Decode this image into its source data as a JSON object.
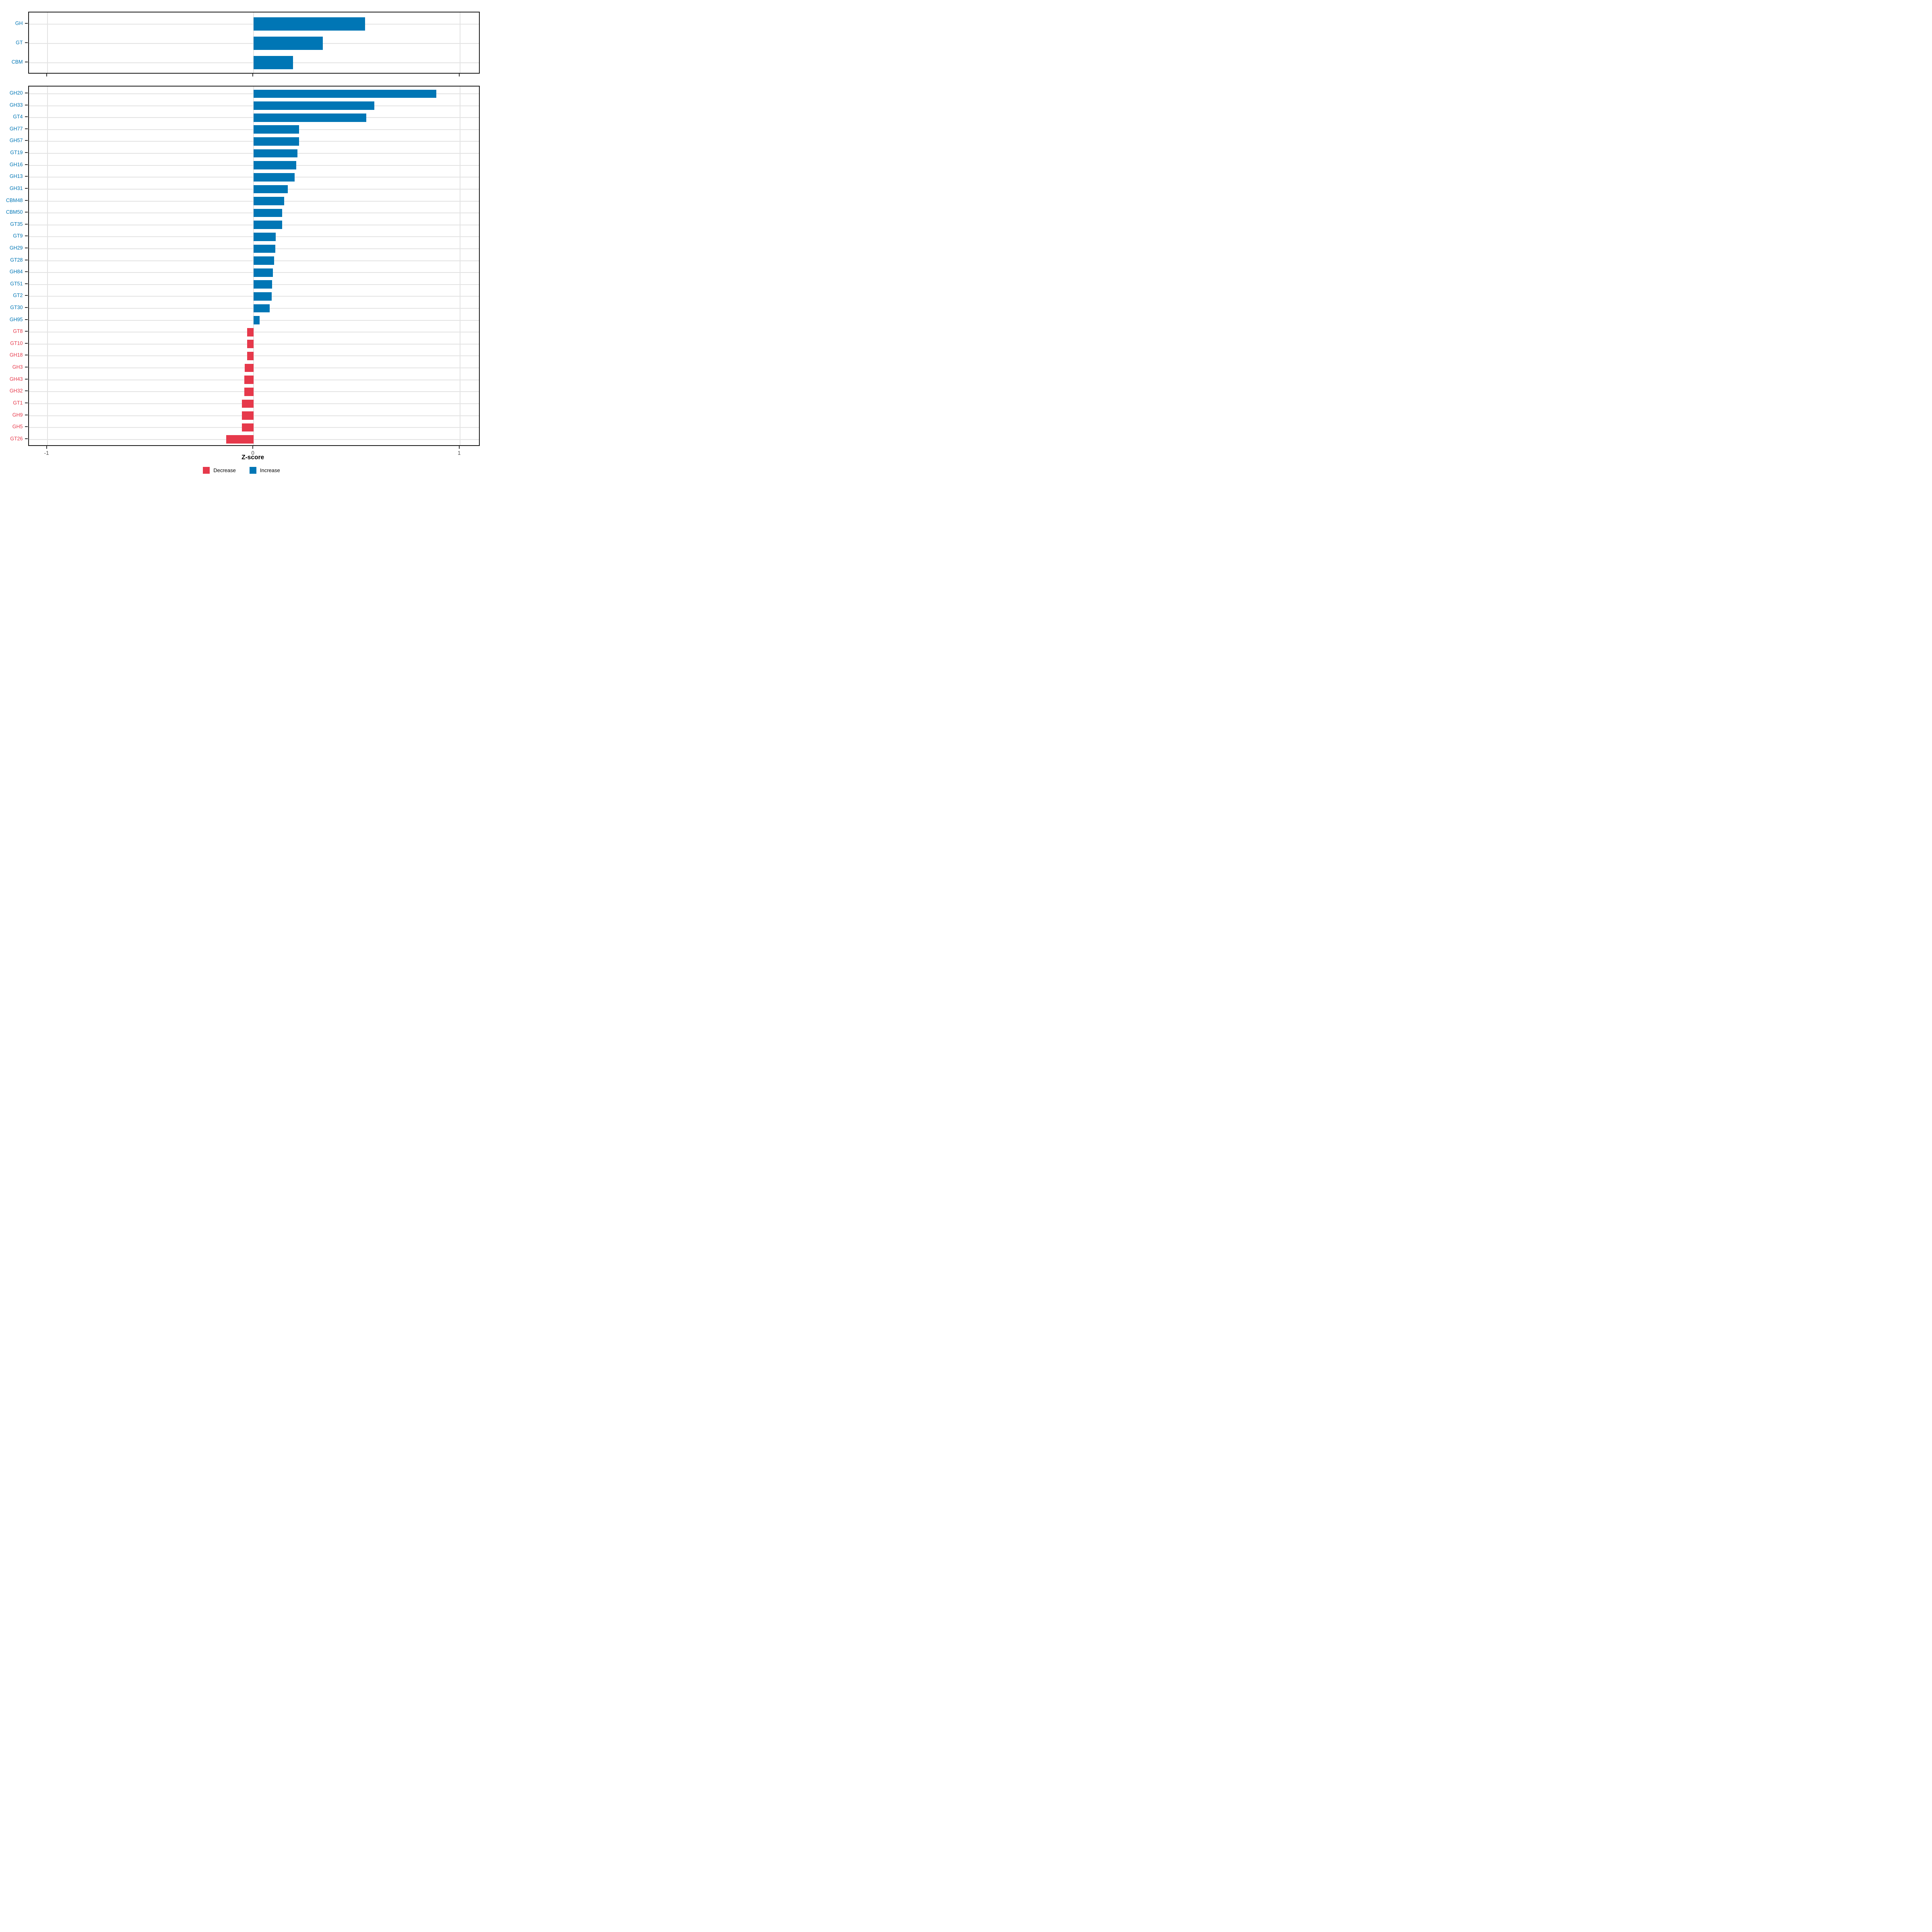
{
  "x_axis": {
    "title": "Z-score",
    "tick_values": [
      -1,
      0,
      1
    ],
    "tick_labels": [
      "-1",
      "0",
      "1"
    ],
    "domain": [
      -1.09,
      1.1
    ]
  },
  "legend": {
    "position": "bottom-center",
    "items": [
      {
        "label": "Decrease",
        "color": "#e6394b"
      },
      {
        "label": "Increase",
        "color": "#0076b5"
      }
    ]
  },
  "colors": {
    "increase": "#0076b5",
    "decrease": "#e6394b",
    "gridline": "#e3e3e3",
    "panel_border": "#1a1a1a",
    "tick": "#333333",
    "axis_text": "#4d4d4d"
  },
  "chart_data": [
    {
      "panel": "summary",
      "type": "bar",
      "orientation": "horizontal",
      "grid": true,
      "legend_position": "bottom",
      "xlabel": "Z-score",
      "xlim": [
        -1.09,
        1.1
      ],
      "x_ticks": [
        -1,
        0,
        1
      ],
      "categories": [
        "GH",
        "GT",
        "CBM"
      ],
      "values": [
        0.54,
        0.335,
        0.19
      ],
      "directions": [
        "Increase",
        "Increase",
        "Increase"
      ]
    },
    {
      "panel": "families",
      "type": "bar",
      "orientation": "horizontal",
      "grid": true,
      "legend_position": "bottom",
      "xlabel": "Z-score",
      "xlim": [
        -1.09,
        1.1
      ],
      "x_ticks": [
        -1,
        0,
        1
      ],
      "categories": [
        "GH20",
        "GH33",
        "GT4",
        "GH77",
        "GH57",
        "GT19",
        "GH16",
        "GH13",
        "GH31",
        "CBM48",
        "CBM50",
        "GT35",
        "GT9",
        "GH29",
        "GT28",
        "GH84",
        "GT51",
        "GT2",
        "GT30",
        "GH95",
        "GT8",
        "GT10",
        "GH18",
        "GH3",
        "GH43",
        "GH32",
        "GT1",
        "GH9",
        "GH5",
        "GT26"
      ],
      "values": [
        0.885,
        0.585,
        0.545,
        0.22,
        0.22,
        0.213,
        0.206,
        0.198,
        0.165,
        0.148,
        0.138,
        0.138,
        0.107,
        0.105,
        0.099,
        0.094,
        0.089,
        0.088,
        0.078,
        0.028,
        -0.032,
        -0.032,
        -0.032,
        -0.043,
        -0.046,
        -0.046,
        -0.056,
        -0.056,
        -0.056,
        -0.134
      ],
      "directions": [
        "Increase",
        "Increase",
        "Increase",
        "Increase",
        "Increase",
        "Increase",
        "Increase",
        "Increase",
        "Increase",
        "Increase",
        "Increase",
        "Increase",
        "Increase",
        "Increase",
        "Increase",
        "Increase",
        "Increase",
        "Increase",
        "Increase",
        "Increase",
        "Decrease",
        "Decrease",
        "Decrease",
        "Decrease",
        "Decrease",
        "Decrease",
        "Decrease",
        "Decrease",
        "Decrease",
        "Decrease"
      ]
    }
  ]
}
